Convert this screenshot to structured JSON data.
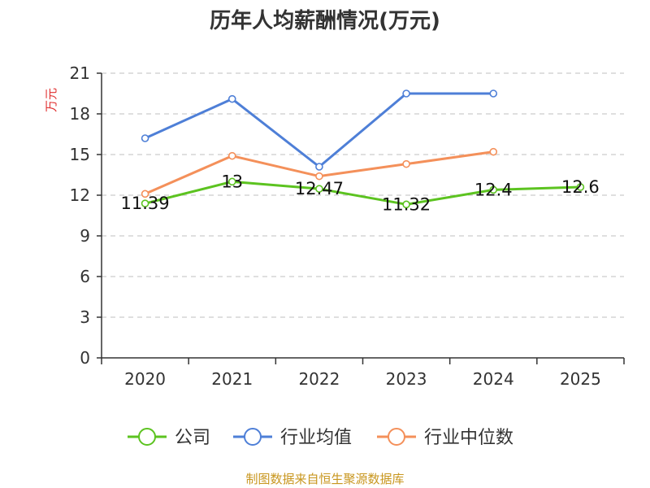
{
  "chart_data": {
    "type": "line",
    "title": "历年人均薪酬情况(万元)",
    "ylabel": "万元",
    "xlabel": "",
    "categories": [
      "2020",
      "2021",
      "2022",
      "2023",
      "2024",
      "2025"
    ],
    "ylim": [
      0,
      21
    ],
    "yticks": [
      0,
      3,
      6,
      9,
      12,
      15,
      18,
      21
    ],
    "grid": true,
    "legend_position": "bottom-center",
    "series": [
      {
        "name": "公司",
        "color": "#5cc320",
        "values": [
          11.39,
          13,
          12.47,
          11.32,
          12.4,
          12.6
        ],
        "labels": [
          "11.39",
          "13",
          "12.47",
          "11.32",
          "12.4",
          "12.6"
        ]
      },
      {
        "name": "行业均值",
        "color": "#4e7fd7",
        "values": [
          16.2,
          19.1,
          14.1,
          19.5,
          19.5,
          null
        ]
      },
      {
        "name": "行业中位数",
        "color": "#f4905a",
        "values": [
          12.1,
          14.9,
          13.4,
          14.3,
          15.2,
          null
        ]
      }
    ],
    "source": "制图数据来自恒生聚源数据库"
  },
  "colors": {
    "axis": "#333333",
    "grid": "#cccccc",
    "unit_label": "#e03030",
    "source_text": "#c8961e"
  }
}
